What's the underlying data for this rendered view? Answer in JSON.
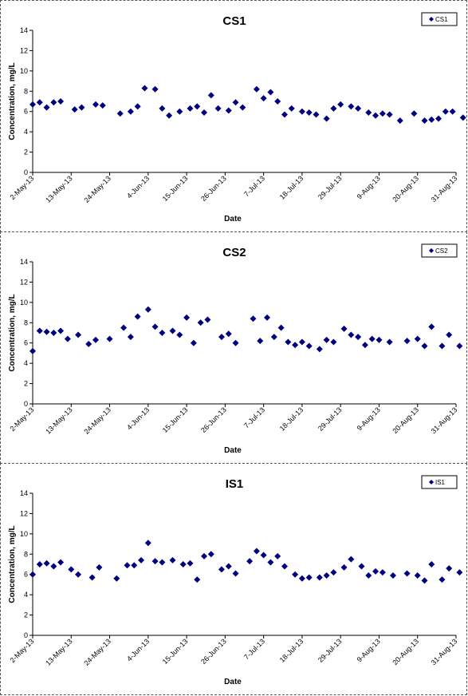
{
  "chart_data": [
    {
      "type": "scatter",
      "title": "CS1",
      "xlabel": "Date",
      "ylabel": "Concentration, mg/L",
      "ylim": [
        0,
        14
      ],
      "yticks": [
        "0",
        "2",
        "4",
        "6",
        "8",
        "10",
        "12",
        "14"
      ],
      "xlim": [
        "2-May-13",
        "31-Aug-13"
      ],
      "xticks": [
        "2-May-13",
        "13-May-13",
        "24-May-13",
        "4-Jun-13",
        "15-Jun-13",
        "26-Jun-13",
        "7-Jul-13",
        "18-Jul-13",
        "29-Jul-13",
        "9-Aug-13",
        "20-Aug-13",
        "31-Aug-13"
      ],
      "legend": "top-right",
      "color": "#000080",
      "series": [
        {
          "name": "CS1",
          "points": [
            [
              "2-May-13",
              6.7
            ],
            [
              "4-May-13",
              6.9
            ],
            [
              "6-May-13",
              6.4
            ],
            [
              "8-May-13",
              6.9
            ],
            [
              "10-May-13",
              7.0
            ],
            [
              "14-May-13",
              6.2
            ],
            [
              "16-May-13",
              6.4
            ],
            [
              "20-May-13",
              6.7
            ],
            [
              "22-May-13",
              6.6
            ],
            [
              "27-May-13",
              5.8
            ],
            [
              "30-May-13",
              6.0
            ],
            [
              "1-Jun-13",
              6.5
            ],
            [
              "3-Jun-13",
              8.3
            ],
            [
              "6-Jun-13",
              8.2
            ],
            [
              "8-Jun-13",
              6.3
            ],
            [
              "10-Jun-13",
              5.6
            ],
            [
              "13-Jun-13",
              6.0
            ],
            [
              "16-Jun-13",
              6.3
            ],
            [
              "18-Jun-13",
              6.5
            ],
            [
              "20-Jun-13",
              5.9
            ],
            [
              "22-Jun-13",
              7.6
            ],
            [
              "24-Jun-13",
              6.3
            ],
            [
              "27-Jun-13",
              6.1
            ],
            [
              "29-Jun-13",
              6.9
            ],
            [
              "1-Jul-13",
              6.4
            ],
            [
              "5-Jul-13",
              8.2
            ],
            [
              "7-Jul-13",
              7.3
            ],
            [
              "9-Jul-13",
              7.9
            ],
            [
              "11-Jul-13",
              7.0
            ],
            [
              "13-Jul-13",
              5.7
            ],
            [
              "15-Jul-13",
              6.3
            ],
            [
              "18-Jul-13",
              6.0
            ],
            [
              "20-Jul-13",
              5.9
            ],
            [
              "22-Jul-13",
              5.7
            ],
            [
              "25-Jul-13",
              5.3
            ],
            [
              "27-Jul-13",
              6.3
            ],
            [
              "29-Jul-13",
              6.7
            ],
            [
              "1-Aug-13",
              6.5
            ],
            [
              "3-Aug-13",
              6.3
            ],
            [
              "6-Aug-13",
              5.9
            ],
            [
              "8-Aug-13",
              5.6
            ],
            [
              "10-Aug-13",
              5.8
            ],
            [
              "12-Aug-13",
              5.7
            ],
            [
              "15-Aug-13",
              5.1
            ],
            [
              "19-Aug-13",
              5.8
            ],
            [
              "22-Aug-13",
              5.1
            ],
            [
              "24-Aug-13",
              5.2
            ],
            [
              "26-Aug-13",
              5.3
            ],
            [
              "28-Aug-13",
              6.0
            ],
            [
              "30-Aug-13",
              6.0
            ],
            [
              "2-Sep-13",
              5.4
            ]
          ]
        }
      ]
    },
    {
      "type": "scatter",
      "title": "CS2",
      "xlabel": "Date",
      "ylabel": "Concentration, mg/L",
      "ylim": [
        0,
        14
      ],
      "yticks": [
        "0",
        "2",
        "4",
        "6",
        "8",
        "10",
        "12",
        "14"
      ],
      "xlim": [
        "2-May-13",
        "31-Aug-13"
      ],
      "xticks": [
        "2-May-13",
        "13-May-13",
        "24-May-13",
        "4-Jun-13",
        "15-Jun-13",
        "26-Jun-13",
        "7-Jul-13",
        "18-Jul-13",
        "29-Jul-13",
        "9-Aug-13",
        "20-Aug-13",
        "31-Aug-13"
      ],
      "legend": "top-right",
      "color": "#000080",
      "series": [
        {
          "name": "CS2",
          "points": [
            [
              "2-May-13",
              5.2
            ],
            [
              "4-May-13",
              7.2
            ],
            [
              "6-May-13",
              7.1
            ],
            [
              "8-May-13",
              7.0
            ],
            [
              "10-May-13",
              7.2
            ],
            [
              "12-May-13",
              6.4
            ],
            [
              "15-May-13",
              6.8
            ],
            [
              "18-May-13",
              5.9
            ],
            [
              "20-May-13",
              6.3
            ],
            [
              "24-May-13",
              6.4
            ],
            [
              "28-May-13",
              7.5
            ],
            [
              "30-May-13",
              6.6
            ],
            [
              "1-Jun-13",
              8.6
            ],
            [
              "4-Jun-13",
              9.3
            ],
            [
              "6-Jun-13",
              7.6
            ],
            [
              "8-Jun-13",
              7.0
            ],
            [
              "11-Jun-13",
              7.2
            ],
            [
              "13-Jun-13",
              6.8
            ],
            [
              "15-Jun-13",
              8.5
            ],
            [
              "17-Jun-13",
              6.0
            ],
            [
              "19-Jun-13",
              8.0
            ],
            [
              "21-Jun-13",
              8.3
            ],
            [
              "25-Jun-13",
              6.6
            ],
            [
              "27-Jun-13",
              6.9
            ],
            [
              "29-Jun-13",
              6.0
            ],
            [
              "4-Jul-13",
              8.4
            ],
            [
              "6-Jul-13",
              6.2
            ],
            [
              "8-Jul-13",
              8.5
            ],
            [
              "10-Jul-13",
              6.6
            ],
            [
              "12-Jul-13",
              7.5
            ],
            [
              "14-Jul-13",
              6.1
            ],
            [
              "16-Jul-13",
              5.8
            ],
            [
              "18-Jul-13",
              6.1
            ],
            [
              "20-Jul-13",
              5.7
            ],
            [
              "23-Jul-13",
              5.4
            ],
            [
              "25-Jul-13",
              6.3
            ],
            [
              "27-Jul-13",
              6.1
            ],
            [
              "30-Jul-13",
              7.4
            ],
            [
              "1-Aug-13",
              6.8
            ],
            [
              "3-Aug-13",
              6.6
            ],
            [
              "5-Aug-13",
              5.8
            ],
            [
              "7-Aug-13",
              6.4
            ],
            [
              "9-Aug-13",
              6.3
            ],
            [
              "12-Aug-13",
              6.1
            ],
            [
              "17-Aug-13",
              6.2
            ],
            [
              "20-Aug-13",
              6.4
            ],
            [
              "22-Aug-13",
              5.7
            ],
            [
              "24-Aug-13",
              7.6
            ],
            [
              "27-Aug-13",
              5.7
            ],
            [
              "29-Aug-13",
              6.8
            ],
            [
              "1-Sep-13",
              5.7
            ]
          ]
        }
      ]
    },
    {
      "type": "scatter",
      "title": "IS1",
      "xlabel": "Date",
      "ylabel": "Concentration, mg/L",
      "ylim": [
        0,
        14
      ],
      "yticks": [
        "0",
        "2",
        "4",
        "6",
        "8",
        "10",
        "12",
        "14"
      ],
      "xlim": [
        "2-May-13",
        "31-Aug-13"
      ],
      "xticks": [
        "2-May-13",
        "13-May-13",
        "24-May-13",
        "4-Jun-13",
        "15-Jun-13",
        "26-Jun-13",
        "7-Jul-13",
        "18-Jul-13",
        "29-Jul-13",
        "9-Aug-13",
        "20-Aug-13",
        "31-Aug-13"
      ],
      "legend": "top-right",
      "color": "#000080",
      "series": [
        {
          "name": "IS1",
          "points": [
            [
              "2-May-13",
              6.0
            ],
            [
              "4-May-13",
              7.0
            ],
            [
              "6-May-13",
              7.1
            ],
            [
              "8-May-13",
              6.8
            ],
            [
              "10-May-13",
              7.2
            ],
            [
              "13-May-13",
              6.5
            ],
            [
              "15-May-13",
              6.0
            ],
            [
              "19-May-13",
              5.7
            ],
            [
              "21-May-13",
              6.7
            ],
            [
              "26-May-13",
              5.6
            ],
            [
              "29-May-13",
              6.9
            ],
            [
              "31-May-13",
              6.9
            ],
            [
              "2-Jun-13",
              7.4
            ],
            [
              "4-Jun-13",
              9.1
            ],
            [
              "6-Jun-13",
              7.3
            ],
            [
              "8-Jun-13",
              7.2
            ],
            [
              "11-Jun-13",
              7.4
            ],
            [
              "14-Jun-13",
              7.0
            ],
            [
              "16-Jun-13",
              7.1
            ],
            [
              "18-Jun-13",
              5.5
            ],
            [
              "20-Jun-13",
              7.8
            ],
            [
              "22-Jun-13",
              8.0
            ],
            [
              "25-Jun-13",
              6.5
            ],
            [
              "27-Jun-13",
              6.8
            ],
            [
              "29-Jun-13",
              6.1
            ],
            [
              "3-Jul-13",
              7.3
            ],
            [
              "5-Jul-13",
              8.3
            ],
            [
              "7-Jul-13",
              7.9
            ],
            [
              "9-Jul-13",
              7.2
            ],
            [
              "11-Jul-13",
              7.8
            ],
            [
              "13-Jul-13",
              6.8
            ],
            [
              "16-Jul-13",
              6.0
            ],
            [
              "18-Jul-13",
              5.6
            ],
            [
              "20-Jul-13",
              5.7
            ],
            [
              "23-Jul-13",
              5.7
            ],
            [
              "25-Jul-13",
              5.9
            ],
            [
              "27-Jul-13",
              6.2
            ],
            [
              "30-Jul-13",
              6.7
            ],
            [
              "1-Aug-13",
              7.5
            ],
            [
              "4-Aug-13",
              6.8
            ],
            [
              "6-Aug-13",
              5.9
            ],
            [
              "8-Aug-13",
              6.3
            ],
            [
              "10-Aug-13",
              6.2
            ],
            [
              "13-Aug-13",
              5.9
            ],
            [
              "17-Aug-13",
              6.1
            ],
            [
              "20-Aug-13",
              5.9
            ],
            [
              "22-Aug-13",
              5.4
            ],
            [
              "24-Aug-13",
              7.0
            ],
            [
              "27-Aug-13",
              5.5
            ],
            [
              "29-Aug-13",
              6.6
            ],
            [
              "1-Sep-13",
              6.2
            ]
          ]
        }
      ]
    }
  ]
}
